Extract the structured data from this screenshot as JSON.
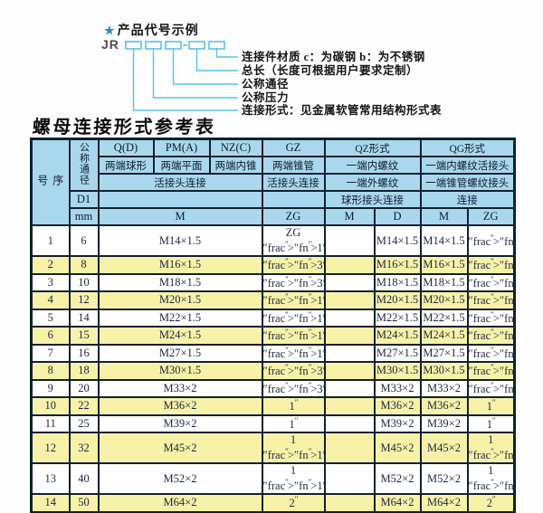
{
  "diagram": {
    "star": "★",
    "title": "产品代号示例",
    "code_prefix": "JR",
    "labels": [
      "连接件材质  c：为碳钢  b：为不锈钢",
      "总长（长度可根据用户要求定制）",
      "公称通径",
      "公称压力",
      "连接形式：见金属软管常用结构形式表"
    ]
  },
  "table": {
    "title": "螺母连接形式参考表",
    "header": {
      "seq": "序号",
      "dn": "公称通径",
      "d1": "D1",
      "mm": "mm",
      "col_q": "Q(D)",
      "col_q_desc": "两端球形",
      "col_pm": "PM(A)",
      "col_pm_desc": "两端平面",
      "col_nz": "NZ(C)",
      "col_nz_desc": "两端内锥",
      "col_gz": "GZ",
      "col_gz_desc": "两端锥管",
      "union_joint": "活接头连接",
      "gz_union": "活接头连接",
      "qz": "QZ形式",
      "qz_row2": "一端内螺纹",
      "qz_row3": "一端外螺纹",
      "qz_row4": "球形接头连接",
      "qg": "QG形式",
      "qg_row2": "一端内螺纹活接头",
      "qg_row3": "一端锥管螺纹接头",
      "qg_row4": "连接",
      "m_merged": "M",
      "zg_col": "ZG",
      "qz_m": "M",
      "qz_d": "D",
      "qg_m": "M",
      "qg_zg": "ZG"
    },
    "rows": [
      {
        "seq": "1",
        "dn": "6",
        "m": "M14×1.5",
        "zg": "ZG 1/4\"",
        "qz_m": "",
        "qz_d": "M14×1.5",
        "qg_m": "M14×1.5",
        "qg_zg": "1/4\""
      },
      {
        "seq": "2",
        "dn": "8",
        "m": "M16×1.5",
        "zg": "3/8\"",
        "qz_m": "",
        "qz_d": "M16×1.5",
        "qg_m": "M16×1.5",
        "qg_zg": "3/8\""
      },
      {
        "seq": "3",
        "dn": "10",
        "m": "M18×1.5",
        "zg": "3/8\"",
        "qz_m": "",
        "qz_d": "M18×1.5",
        "qg_m": "M18×1.5",
        "qg_zg": "3/8\""
      },
      {
        "seq": "4",
        "dn": "12",
        "m": "M20×1.5",
        "zg": "1/2\"",
        "qz_m": "",
        "qz_d": "M20×1.5",
        "qg_m": "M20×1.5",
        "qg_zg": "1/2\""
      },
      {
        "seq": "5",
        "dn": "14",
        "m": "M22×1.5",
        "zg": "1/2\"",
        "qz_m": "",
        "qz_d": "M22×1.5",
        "qg_m": "M22×1.5",
        "qg_zg": "1/2\""
      },
      {
        "seq": "6",
        "dn": "15",
        "m": "M24×1.5",
        "zg": "1/2\"",
        "qz_m": "",
        "qz_d": "M24×1.5",
        "qg_m": "M24×1.5",
        "qg_zg": "1/2\""
      },
      {
        "seq": "7",
        "dn": "16",
        "m": "M27×1.5",
        "zg": "1/2\"",
        "qz_m": "",
        "qz_d": "M27×1.5",
        "qg_m": "M27×1.5",
        "qg_zg": "1/2\""
      },
      {
        "seq": "8",
        "dn": "18",
        "m": "M30×1.5",
        "zg": "3/4\"",
        "qz_m": "",
        "qz_d": "M30×1.5",
        "qg_m": "M30×1.5",
        "qg_zg": "3/4\""
      },
      {
        "seq": "9",
        "dn": "20",
        "m": "M33×2",
        "zg": "3/4\"",
        "qz_m": "",
        "qz_d": "M33×2",
        "qg_m": "M33×2",
        "qg_zg": "3/4\""
      },
      {
        "seq": "10",
        "dn": "22",
        "m": "M36×2",
        "zg": "1\"",
        "qz_m": "",
        "qz_d": "M36×2",
        "qg_m": "M36×2",
        "qg_zg": "1\""
      },
      {
        "seq": "11",
        "dn": "25",
        "m": "M39×2",
        "zg": "1\"",
        "qz_m": "",
        "qz_d": "M39×2",
        "qg_m": "M39×2",
        "qg_zg": "1\""
      },
      {
        "seq": "12",
        "dn": "32",
        "m": "M45×2",
        "zg": "1 1/4\"",
        "qz_m": "",
        "qz_d": "M45×2",
        "qg_m": "M45×2",
        "qg_zg": "1 1/4\""
      },
      {
        "seq": "13",
        "dn": "40",
        "m": "M52×2",
        "zg": "1 1/2\"",
        "qz_m": "",
        "qz_d": "M52×2",
        "qg_m": "M52×2",
        "qg_zg": "1 1/2\""
      },
      {
        "seq": "14",
        "dn": "50",
        "m": "M64×2",
        "zg": "2\"",
        "qz_m": "",
        "qz_d": "M64×2",
        "qg_m": "M64×2",
        "qg_zg": "2\""
      }
    ]
  },
  "colors": {
    "header_bg": "#a9d8ee",
    "row_alt_bg": "#f7f2a8",
    "border": "#12202f",
    "diagram_line": "#55c3e8",
    "star_blue": "#1f8fd2"
  }
}
